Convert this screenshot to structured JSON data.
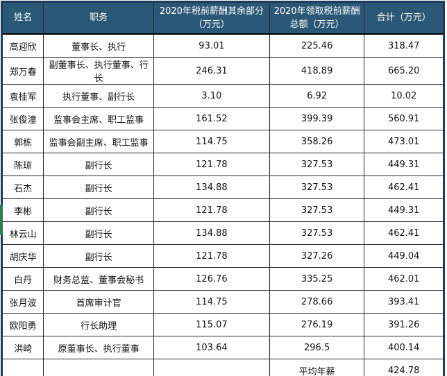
{
  "colors": {
    "header_bg": "#2b5877",
    "header_text": "#ffffff",
    "outer_border": "#1b3a5f",
    "grid": "#2a2a2a",
    "body_text": "#111111",
    "page_bg": "#ffffff",
    "artifact_green": "#2e7d50"
  },
  "chart_data": {
    "type": "table",
    "columns": [
      {
        "label": "姓名"
      },
      {
        "label": "职务"
      },
      {
        "label": "2020年税前薪酬其余部分\n（万元）"
      },
      {
        "label": "2020年领取税前薪酬\n总额（万元）"
      },
      {
        "label": "合计（万元）"
      }
    ],
    "rows": [
      [
        "高迎欣",
        "董事长、执行",
        "93.01",
        "225.46",
        "318.47"
      ],
      [
        "郑万春",
        "副董事长、执行董事、行长",
        "246.31",
        "418.89",
        "665.20"
      ],
      [
        "袁桂军",
        "执行董事、副行长",
        "3.10",
        "6.92",
        "10.02"
      ],
      [
        "张俊潼",
        "监事会主席、职工监事",
        "161.52",
        "399.39",
        "560.91"
      ],
      [
        "郭栋",
        "监事会副主席、职工监事",
        "114.75",
        "358.26",
        "473.01"
      ],
      [
        "陈琼",
        "副行长",
        "121.78",
        "327.53",
        "449.31"
      ],
      [
        "石杰",
        "副行长",
        "134.88",
        "327.53",
        "462.41"
      ],
      [
        "李彬",
        "副行长",
        "121.78",
        "327.53",
        "449.31"
      ],
      [
        "林云山",
        "副行长",
        "134.88",
        "327.53",
        "462.41"
      ],
      [
        "胡庆华",
        "副行长",
        "121.78",
        "327.26",
        "449.04"
      ],
      [
        "白丹",
        "财务总监、董事会秘书",
        "126.76",
        "335.25",
        "462.01"
      ],
      [
        "张月波",
        "首席审计官",
        "114.75",
        "278.66",
        "393.41"
      ],
      [
        "欧阳勇",
        "行长助理",
        "115.07",
        "276.19",
        "391.26"
      ],
      [
        "洪崎",
        "原董事长、执行董事",
        "103.64",
        "296.5",
        "400.14"
      ],
      [
        "",
        "",
        "",
        "平均年薪",
        "424.78"
      ]
    ]
  }
}
